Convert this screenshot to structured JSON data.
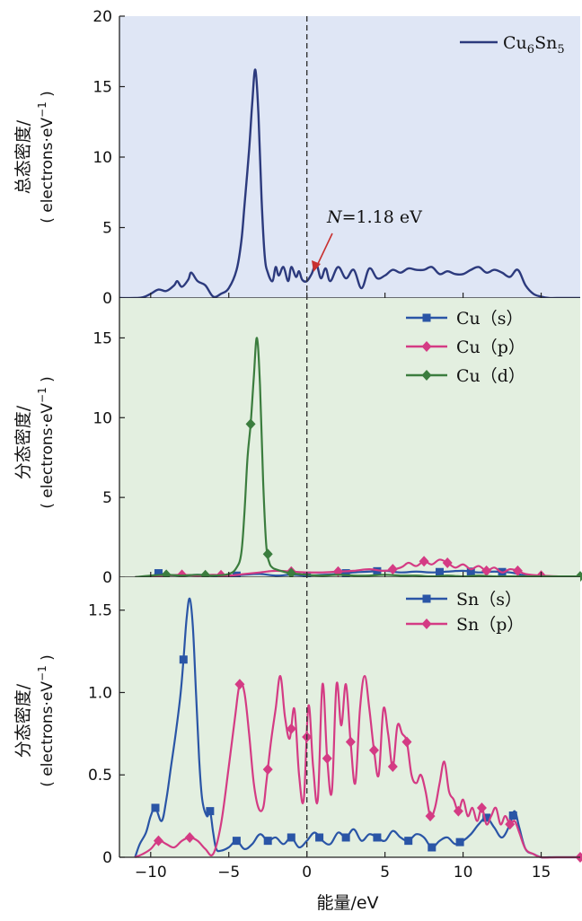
{
  "colors": {
    "panel1_bg": "#dfe6f5",
    "panel2_bg": "#e3efe0",
    "panel3_bg": "#e3efe0",
    "navy": "#2c3a7d",
    "blue": "#2a55a6",
    "magenta": "#d43b84",
    "green": "#3b7d3e",
    "arrow": "#c8302f",
    "fermi": "#333333"
  },
  "xlabel": "能量/eV",
  "fermi_annotation": {
    "var": "N",
    "rest": "=1.18 eV"
  },
  "chart_data": [
    {
      "type": "line",
      "ylabel_cn": "总态密度/",
      "ylabel_unit": "( electrons·eV",
      "ylabel_sup": "−1",
      "ylabel_close": " )",
      "xlim": [
        -12,
        17.5
      ],
      "ylim": [
        0,
        20
      ],
      "xticks": [
        -10,
        -5,
        0,
        5,
        10,
        15
      ],
      "yticks": [
        0,
        5,
        10,
        15,
        20
      ],
      "series": [
        {
          "name": "Cu6Sn5",
          "name_parts": {
            "a": "Cu",
            "a_sub": "6",
            "b": "Sn",
            "b_sub": "5"
          },
          "color": "#2c3a7d",
          "marker": "none",
          "x": [
            -12,
            -11,
            -10.5,
            -10,
            -9.5,
            -9,
            -8.5,
            -8.3,
            -8,
            -7.6,
            -7.4,
            -7,
            -6.5,
            -6,
            -5.5,
            -5,
            -4.5,
            -4.2,
            -4,
            -3.7,
            -3.5,
            -3.3,
            -3.1,
            -2.9,
            -2.7,
            -2.5,
            -2.2,
            -2,
            -1.8,
            -1.5,
            -1.2,
            -1,
            -0.7,
            -0.5,
            -0.3,
            0,
            0.3,
            0.6,
            0.9,
            1.2,
            1.5,
            2,
            2.5,
            3,
            3.5,
            4,
            4.5,
            5,
            5.5,
            6,
            6.5,
            7,
            7.5,
            8,
            8.5,
            9,
            9.5,
            10,
            10.5,
            11,
            11.5,
            12,
            12.5,
            13,
            13.5,
            14,
            14.5,
            15,
            15.5,
            16,
            17.5
          ],
          "y": [
            0,
            0,
            0.05,
            0.3,
            0.6,
            0.5,
            0.9,
            1.2,
            0.8,
            1.3,
            1.8,
            1.2,
            0.9,
            0.1,
            0.3,
            0.7,
            2.0,
            4.0,
            6.5,
            10.5,
            13.8,
            16.2,
            13.0,
            7.0,
            3.0,
            1.8,
            1.2,
            2.2,
            1.6,
            2.2,
            1.2,
            2.2,
            1.5,
            1.9,
            1.3,
            1.2,
            1.7,
            2.4,
            1.4,
            2.1,
            1.2,
            2.2,
            1.4,
            2.0,
            0.7,
            2.1,
            1.4,
            1.6,
            2.0,
            1.8,
            2.1,
            2.0,
            2.0,
            2.2,
            1.7,
            1.9,
            1.7,
            1.7,
            2.0,
            2.2,
            1.8,
            2.0,
            1.8,
            1.5,
            2.0,
            0.9,
            0.3,
            0.1,
            0,
            0,
            0
          ]
        }
      ]
    },
    {
      "type": "line",
      "ylabel_cn": "分态密度/",
      "ylabel_unit": "( electrons·eV",
      "ylabel_sup": "−1",
      "ylabel_close": " )",
      "xlim": [
        -12,
        17.5
      ],
      "ylim": [
        0,
        17.5
      ],
      "xticks": [
        -10,
        -5,
        0,
        5,
        10,
        15
      ],
      "yticks": [
        0,
        5,
        10,
        15
      ],
      "series": [
        {
          "name": "Cu（s）",
          "color": "#2a55a6",
          "marker": "square",
          "x": [
            -11,
            -10,
            -9.5,
            -9,
            -8,
            -7,
            -6,
            -5,
            -4,
            -3,
            -2,
            -1,
            0,
            1,
            2,
            3,
            4,
            5,
            6,
            7,
            8,
            9,
            10,
            11,
            12,
            13,
            14,
            15,
            17.5
          ],
          "y": [
            0,
            0.05,
            0.25,
            0.15,
            0.1,
            0.15,
            0.1,
            0.05,
            0.15,
            0.2,
            0.1,
            0.15,
            0.1,
            0.15,
            0.2,
            0.3,
            0.35,
            0.4,
            0.3,
            0.35,
            0.3,
            0.35,
            0.4,
            0.3,
            0.35,
            0.3,
            0.1,
            0,
            0
          ],
          "marker_x": [
            -9.5,
            -4.5,
            0,
            2.5,
            4.5,
            8.5,
            10.5,
            12.5
          ]
        },
        {
          "name": "Cu（p）",
          "color": "#d43b84",
          "marker": "diamond",
          "x": [
            -11,
            -10,
            -9,
            -8,
            -7,
            -6,
            -5,
            -4,
            -3,
            -2,
            -1,
            0,
            1,
            2,
            3,
            4,
            5,
            6,
            6.5,
            7,
            7.5,
            8,
            8.5,
            9,
            9.5,
            10,
            10.5,
            11,
            11.5,
            12,
            12.5,
            13,
            13.5,
            14,
            15,
            17.5
          ],
          "y": [
            0,
            0.05,
            0.1,
            0.15,
            0.1,
            0.15,
            0.1,
            0.2,
            0.3,
            0.4,
            0.35,
            0.3,
            0.3,
            0.35,
            0.4,
            0.5,
            0.4,
            0.6,
            0.9,
            0.7,
            1.0,
            0.8,
            1.1,
            0.9,
            0.6,
            0.8,
            0.5,
            0.7,
            0.4,
            0.6,
            0.3,
            0.5,
            0.4,
            0.2,
            0.1,
            0
          ],
          "marker_x": [
            -8,
            -5.5,
            -1,
            2,
            5.5,
            7.5,
            9,
            11.5,
            13.5,
            15
          ]
        },
        {
          "name": "Cu（d）",
          "color": "#3b7d3e",
          "marker": "diamond",
          "x": [
            -11,
            -10,
            -9,
            -8,
            -7,
            -6,
            -5,
            -4.5,
            -4.2,
            -4,
            -3.8,
            -3.6,
            -3.4,
            -3.2,
            -3,
            -2.8,
            -2.6,
            -2.4,
            -2.2,
            -2,
            -1.5,
            -1,
            0,
            1,
            2,
            3,
            4,
            5,
            6,
            7,
            8,
            9,
            10,
            11,
            12,
            13,
            14,
            15,
            16,
            17.5
          ],
          "y": [
            0,
            0.1,
            0.15,
            0.1,
            0.15,
            0.1,
            0.2,
            0.6,
            1.5,
            4.0,
            7.5,
            9.6,
            12.5,
            15.0,
            12.0,
            6.0,
            2.0,
            0.9,
            0.6,
            0.5,
            0.35,
            0.25,
            0.15,
            0.1,
            0.15,
            0.1,
            0.1,
            0.15,
            0.1,
            0.1,
            0.05,
            0.1,
            0.05,
            0.1,
            0.05,
            0.05,
            0.05,
            0.05,
            0.05,
            0.05
          ],
          "marker_x": [
            -9,
            -6.5,
            -3.6,
            -2.5,
            -1,
            17.5
          ]
        }
      ]
    },
    {
      "type": "line",
      "ylabel_cn": "分态密度/",
      "ylabel_unit": "( electrons·eV",
      "ylabel_sup": "−1",
      "ylabel_close": " )",
      "xlim": [
        -12,
        17.5
      ],
      "ylim": [
        0,
        1.7
      ],
      "xticks": [
        -10,
        -5,
        0,
        5,
        10,
        15
      ],
      "yticks": [
        0,
        0.5,
        1.0,
        1.5
      ],
      "xticklabels": [
        "−10",
        "−5",
        "0",
        "5",
        "10",
        "15"
      ],
      "yticklabels": [
        "0",
        "0.5",
        "1.0",
        "1.5"
      ],
      "series": [
        {
          "name": "Sn（s）",
          "color": "#2a55a6",
          "marker": "square",
          "x": [
            -11,
            -10.7,
            -10.3,
            -10,
            -9.7,
            -9.3,
            -9,
            -8.7,
            -8.4,
            -8.1,
            -7.9,
            -7.7,
            -7.5,
            -7.3,
            -7.1,
            -6.9,
            -6.7,
            -6.4,
            -6.2,
            -6,
            -5.8,
            -5.5,
            -5,
            -4.5,
            -4,
            -3.5,
            -3,
            -2.5,
            -2,
            -1.5,
            -1,
            -0.5,
            0,
            0.5,
            1,
            1.5,
            2,
            2.5,
            3,
            3.5,
            4,
            4.5,
            5,
            5.5,
            6,
            6.5,
            7,
            7.5,
            8,
            8.5,
            9,
            9.5,
            10,
            10.5,
            11,
            11.5,
            12,
            12.5,
            13,
            13.3,
            13.6,
            14,
            14.5,
            15,
            15.5,
            17.5
          ],
          "y": [
            0,
            0.08,
            0.15,
            0.25,
            0.3,
            0.22,
            0.35,
            0.55,
            0.75,
            0.98,
            1.2,
            1.45,
            1.57,
            1.4,
            1.0,
            0.6,
            0.35,
            0.25,
            0.28,
            0.15,
            0.05,
            0.04,
            0.06,
            0.1,
            0.05,
            0.08,
            0.14,
            0.1,
            0.12,
            0.08,
            0.12,
            0.06,
            0.1,
            0.15,
            0.1,
            0.08,
            0.15,
            0.12,
            0.17,
            0.1,
            0.14,
            0.12,
            0.1,
            0.16,
            0.12,
            0.1,
            0.14,
            0.12,
            0.06,
            0.1,
            0.12,
            0.08,
            0.1,
            0.14,
            0.2,
            0.24,
            0.18,
            0.12,
            0.2,
            0.28,
            0.18,
            0.05,
            0.02,
            0,
            0,
            0
          ],
          "marker_x": [
            -9.7,
            -7.9,
            -6.2,
            -4.5,
            -2.5,
            -1,
            0.8,
            2.5,
            4.5,
            6.5,
            8,
            9.8,
            11.5,
            13.2
          ]
        },
        {
          "name": "Sn（p）",
          "color": "#d43b84",
          "marker": "diamond",
          "x": [
            -11,
            -10.5,
            -10,
            -9.5,
            -9,
            -8.5,
            -8,
            -7.5,
            -7,
            -6.5,
            -6,
            -5.5,
            -5,
            -4.6,
            -4.3,
            -4,
            -3.7,
            -3.4,
            -3.1,
            -2.8,
            -2.6,
            -2.3,
            -2,
            -1.7,
            -1.4,
            -1.1,
            -0.8,
            -0.5,
            -0.2,
            0.1,
            0.4,
            0.7,
            1,
            1.3,
            1.6,
            1.9,
            2.2,
            2.5,
            2.8,
            3.1,
            3.4,
            3.7,
            4,
            4.3,
            4.6,
            4.9,
            5.2,
            5.5,
            5.8,
            6.1,
            6.4,
            6.7,
            7,
            7.3,
            7.6,
            7.9,
            8.2,
            8.5,
            8.8,
            9.1,
            9.4,
            9.7,
            10,
            10.3,
            10.6,
            10.9,
            11.2,
            11.5,
            11.8,
            12.1,
            12.4,
            12.7,
            13,
            13.3,
            13.6,
            14,
            14.5,
            15,
            16,
            17.5
          ],
          "y": [
            0,
            0.02,
            0.05,
            0.1,
            0.08,
            0.06,
            0.1,
            0.12,
            0.1,
            0.05,
            0.02,
            0.2,
            0.55,
            0.85,
            1.05,
            1.0,
            0.75,
            0.45,
            0.3,
            0.3,
            0.45,
            0.7,
            0.9,
            1.1,
            0.85,
            0.72,
            0.9,
            0.5,
            0.35,
            0.92,
            0.55,
            0.35,
            1.05,
            0.6,
            0.4,
            1.05,
            0.8,
            1.05,
            0.7,
            0.45,
            0.9,
            1.1,
            0.9,
            0.65,
            0.5,
            0.9,
            0.75,
            0.55,
            0.8,
            0.75,
            0.7,
            0.5,
            0.45,
            0.5,
            0.4,
            0.25,
            0.3,
            0.45,
            0.58,
            0.4,
            0.35,
            0.28,
            0.35,
            0.25,
            0.3,
            0.22,
            0.3,
            0.2,
            0.25,
            0.3,
            0.2,
            0.25,
            0.2,
            0.22,
            0.15,
            0.05,
            0.02,
            0,
            0,
            0
          ],
          "marker_x": [
            -9.5,
            -7.5,
            -4.3,
            -2.5,
            -1,
            0,
            1.3,
            2.8,
            4.3,
            5.5,
            6.4,
            7.9,
            9.7,
            11.2,
            13,
            17.5
          ]
        }
      ]
    }
  ]
}
